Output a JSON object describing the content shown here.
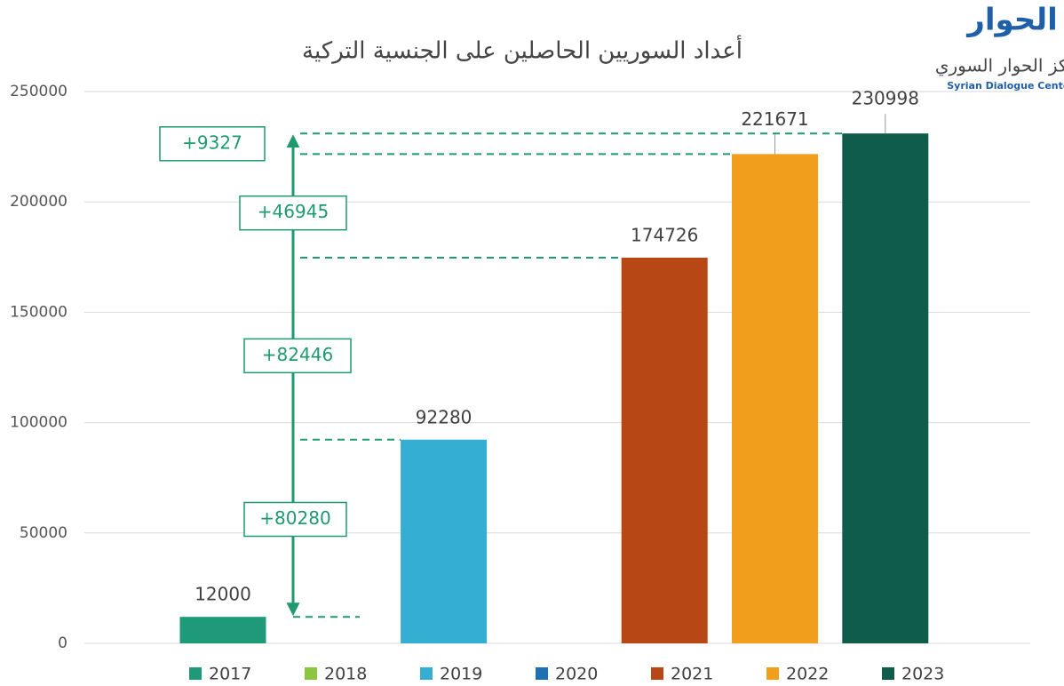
{
  "logo": {
    "mark": "الحوار",
    "name": "مركز الحوار السوري",
    "name_en": "Syrian Dialogue Center"
  },
  "chart_data": {
    "type": "bar",
    "title": "أعداد السوريين الحاصلين على الجنسية التركية",
    "categories": [
      "2017",
      "2018",
      "2019",
      "2020",
      "2021",
      "2022",
      "2023"
    ],
    "values": [
      12000,
      null,
      92280,
      null,
      174726,
      221671,
      230998
    ],
    "colors": [
      "#1f9a78",
      "#8cc63f",
      "#35aed3",
      "#1f6fb4",
      "#b84716",
      "#f09e1c",
      "#0f5c4a"
    ],
    "ylim": [
      0,
      250000
    ],
    "yticks": [
      0,
      50000,
      100000,
      150000,
      200000,
      250000
    ],
    "grid": true,
    "legend": "bottom",
    "annotations": [
      "+80280",
      "+82446",
      "+46945",
      "+9327"
    ],
    "annotation_color": "#1f9a6e"
  }
}
